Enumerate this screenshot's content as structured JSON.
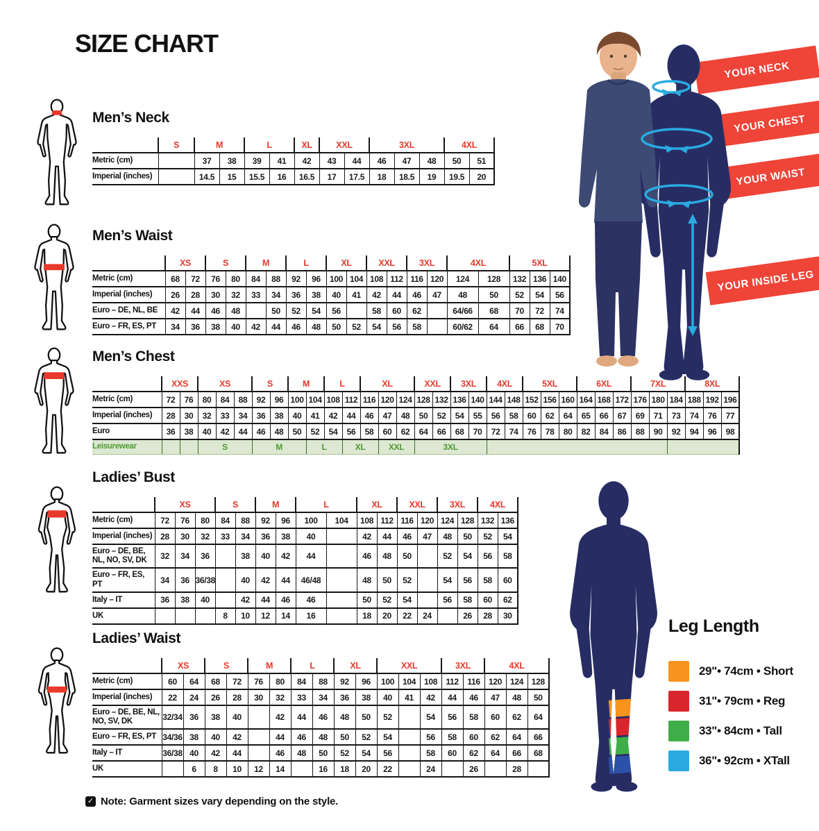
{
  "page": {
    "title": "SIZE CHART",
    "note": "Note: Garment sizes vary depending on the style."
  },
  "colors": {
    "accent_red": "#e63a2c",
    "banner_red": "#ef4438",
    "navy": "#272d63",
    "cyan": "#29abe2",
    "leisure_bg": "#dce8d2",
    "leisure_text": "#4f9a31"
  },
  "banners": {
    "neck": "YOUR NECK",
    "chest": "YOUR CHEST",
    "waist": "YOUR WAIST",
    "inside_leg": "YOUR INSIDE LEG"
  },
  "leg_length": {
    "title": "Leg Length",
    "items": [
      {
        "color": "#f7941e",
        "label": "29\"• 74cm • Short"
      },
      {
        "color": "#d8262c",
        "label": "31\"• 79cm • Reg"
      },
      {
        "color": "#3fae49",
        "label": "33\"• 84cm • Tall"
      },
      {
        "color": "#29abe2",
        "label": "36\"• 92cm • XTall"
      }
    ]
  },
  "tables": {
    "mens_neck": {
      "title": "Men’s Neck",
      "groups": [
        {
          "label": "S",
          "span": 1
        },
        {
          "label": "M",
          "span": 2
        },
        {
          "label": "L",
          "span": 2
        },
        {
          "label": "XL",
          "span": 1
        },
        {
          "label": "XXL",
          "span": 2
        },
        {
          "label": "3XL",
          "span": 3
        },
        {
          "label": "4XL",
          "span": 2
        }
      ],
      "rows": [
        {
          "label": "Metric (cm)",
          "cells": [
            "",
            "37",
            "38",
            "39",
            "41",
            "42",
            "43",
            "44",
            "46",
            "47",
            "48",
            "50",
            "51"
          ]
        },
        {
          "label": "Imperial (inches)",
          "cells": [
            "",
            "14.5",
            "15",
            "15.5",
            "16",
            "16.5",
            "17",
            "17.5",
            "18",
            "18.5",
            "19",
            "19.5",
            "20"
          ]
        }
      ]
    },
    "mens_waist": {
      "title": "Men’s Waist",
      "groups": [
        {
          "label": "XS",
          "span": 2
        },
        {
          "label": "S",
          "span": 2
        },
        {
          "label": "M",
          "span": 2
        },
        {
          "label": "L",
          "span": 2
        },
        {
          "label": "XL",
          "span": 2
        },
        {
          "label": "XXL",
          "span": 2
        },
        {
          "label": "3XL",
          "span": 2
        },
        {
          "label": "4XL",
          "span": 2
        },
        {
          "label": "5XL",
          "span": 3
        }
      ],
      "rows": [
        {
          "label": "Metric (cm)",
          "cells": [
            "68",
            "72",
            "76",
            "80",
            "84",
            "88",
            "92",
            "96",
            "100",
            "104",
            "108",
            "112",
            "116",
            "120",
            "124",
            "128",
            "132",
            "136",
            "140"
          ]
        },
        {
          "label": "Imperial (inches)",
          "cells": [
            "26",
            "28",
            "30",
            "32",
            "33",
            "34",
            "36",
            "38",
            "40",
            "41",
            "42",
            "44",
            "46",
            "47",
            "48",
            "50",
            "52",
            "54",
            "56"
          ]
        },
        {
          "label": "Euro – DE, NL, BE",
          "cells": [
            "42",
            "44",
            "46",
            "48",
            "",
            "50",
            "52",
            "54",
            "56",
            "",
            "58",
            "60",
            "62",
            "",
            "64/66",
            "68",
            "70",
            "72",
            "74"
          ]
        },
        {
          "label": "Euro – FR, ES, PT",
          "cells": [
            "34",
            "36",
            "38",
            "40",
            "42",
            "44",
            "46",
            "48",
            "50",
            "52",
            "54",
            "56",
            "58",
            "",
            "60/62",
            "64",
            "66",
            "68",
            "70"
          ]
        }
      ]
    },
    "mens_chest": {
      "title": "Men’s Chest",
      "groups": [
        {
          "label": "XXS",
          "span": 2
        },
        {
          "label": "XS",
          "span": 3
        },
        {
          "label": "S",
          "span": 2
        },
        {
          "label": "M",
          "span": 2
        },
        {
          "label": "L",
          "span": 2
        },
        {
          "label": "XL",
          "span": 3
        },
        {
          "label": "XXL",
          "span": 2
        },
        {
          "label": "3XL",
          "span": 2
        },
        {
          "label": "4XL",
          "span": 2
        },
        {
          "label": "5XL",
          "span": 3
        },
        {
          "label": "6XL",
          "span": 3
        },
        {
          "label": "7XL",
          "span": 3
        },
        {
          "label": "8XL",
          "span": 3
        }
      ],
      "rows": [
        {
          "label": "Metric (cm)",
          "cells": [
            "72",
            "76",
            "80",
            "84",
            "88",
            "92",
            "96",
            "100",
            "104",
            "108",
            "112",
            "116",
            "120",
            "124",
            "128",
            "132",
            "136",
            "140",
            "144",
            "148",
            "152",
            "156",
            "160",
            "164",
            "168",
            "172",
            "176",
            "180",
            "184",
            "188",
            "192",
            "196"
          ]
        },
        {
          "label": "Imperial (inches)",
          "cells": [
            "28",
            "30",
            "32",
            "33",
            "34",
            "36",
            "38",
            "40",
            "41",
            "42",
            "44",
            "46",
            "47",
            "48",
            "50",
            "52",
            "54",
            "55",
            "56",
            "58",
            "60",
            "62",
            "64",
            "65",
            "66",
            "67",
            "69",
            "71",
            "73",
            "74",
            "76",
            "77"
          ]
        },
        {
          "label": "Euro",
          "cells": [
            "36",
            "38",
            "40",
            "42",
            "44",
            "46",
            "48",
            "50",
            "52",
            "54",
            "56",
            "58",
            "60",
            "62",
            "64",
            "66",
            "68",
            "70",
            "72",
            "74",
            "76",
            "78",
            "80",
            "82",
            "84",
            "86",
            "88",
            "90",
            "92",
            "94",
            "96",
            "98"
          ]
        }
      ],
      "leisure": {
        "label": "Leisurewear",
        "cells": [
          {
            "label": "",
            "span": 1
          },
          {
            "label": "",
            "span": 1
          },
          {
            "label": "S",
            "span": 3
          },
          {
            "label": "M",
            "span": 3
          },
          {
            "label": "L",
            "span": 2
          },
          {
            "label": "XL",
            "span": 2
          },
          {
            "label": "XXL",
            "span": 2
          },
          {
            "label": "3XL",
            "span": 4
          },
          {
            "label": "",
            "span": 10
          },
          {
            "label": "",
            "span": 4
          }
        ]
      }
    },
    "ladies_bust": {
      "title": "Ladies’ Bust",
      "groups": [
        {
          "label": "XS",
          "span": 3
        },
        {
          "label": "S",
          "span": 2
        },
        {
          "label": "M",
          "span": 2
        },
        {
          "label": "L",
          "span": 2
        },
        {
          "label": "XL",
          "span": 2
        },
        {
          "label": "XXL",
          "span": 2
        },
        {
          "label": "3XL",
          "span": 2
        },
        {
          "label": "4XL",
          "span": 2
        }
      ],
      "rows": [
        {
          "label": "Metric (cm)",
          "cells": [
            "72",
            "76",
            "80",
            "84",
            "88",
            "92",
            "96",
            "100",
            "104",
            "108",
            "112",
            "116",
            "120",
            "124",
            "128",
            "132",
            "136"
          ]
        },
        {
          "label": "Imperial (inches)",
          "cells": [
            "28",
            "30",
            "32",
            "33",
            "34",
            "36",
            "38",
            "40",
            "",
            "42",
            "44",
            "46",
            "47",
            "48",
            "50",
            "52",
            "54"
          ]
        },
        {
          "label": "Euro –  DE, BE,\nNL, NO, SV, DK",
          "cells": [
            "32",
            "34",
            "36",
            "",
            "38",
            "40",
            "42",
            "44",
            "",
            "46",
            "48",
            "50",
            "",
            "52",
            "54",
            "56",
            "58"
          ]
        },
        {
          "label": "Euro – FR, ES, PT",
          "cells": [
            "34",
            "36",
            "36/38",
            "",
            "40",
            "42",
            "44",
            "46/48",
            "",
            "48",
            "50",
            "52",
            "",
            "54",
            "56",
            "58",
            "60"
          ]
        },
        {
          "label": "Italy – IT",
          "cells": [
            "36",
            "38",
            "40",
            "",
            "42",
            "44",
            "46",
            "46",
            "",
            "50",
            "52",
            "54",
            "",
            "56",
            "58",
            "60",
            "62"
          ]
        },
        {
          "label": "UK",
          "cells": [
            "",
            "",
            "",
            "8",
            "10",
            "12",
            "14",
            "16",
            "",
            "18",
            "20",
            "22",
            "24",
            "",
            "26",
            "28",
            "30"
          ]
        }
      ]
    },
    "ladies_waist": {
      "title": "Ladies’ Waist",
      "groups": [
        {
          "label": "XS",
          "span": 2
        },
        {
          "label": "S",
          "span": 2
        },
        {
          "label": "M",
          "span": 2
        },
        {
          "label": "L",
          "span": 2
        },
        {
          "label": "XL",
          "span": 2
        },
        {
          "label": "XXL",
          "span": 3
        },
        {
          "label": "3XL",
          "span": 2
        },
        {
          "label": "4XL",
          "span": 3
        }
      ],
      "rows": [
        {
          "label": "Metric (cm)",
          "cells": [
            "60",
            "64",
            "68",
            "72",
            "76",
            "80",
            "84",
            "88",
            "92",
            "96",
            "100",
            "104",
            "108",
            "112",
            "116",
            "120",
            "124",
            "128"
          ]
        },
        {
          "label": "Imperial (inches)",
          "cells": [
            "22",
            "24",
            "26",
            "28",
            "30",
            "32",
            "33",
            "34",
            "36",
            "38",
            "40",
            "41",
            "42",
            "44",
            "46",
            "47",
            "48",
            "50"
          ]
        },
        {
          "label": "Euro – DE, BE, NL,\nNO, SV, DK",
          "cells": [
            "32/34",
            "36",
            "38",
            "40",
            "",
            "42",
            "44",
            "46",
            "48",
            "50",
            "52",
            "",
            "54",
            "56",
            "58",
            "60",
            "62",
            "64"
          ]
        },
        {
          "label": "Euro – FR, ES, PT",
          "cells": [
            "34/36",
            "38",
            "40",
            "42",
            "",
            "44",
            "46",
            "48",
            "50",
            "52",
            "54",
            "",
            "56",
            "58",
            "60",
            "62",
            "64",
            "66"
          ]
        },
        {
          "label": "Italy – IT",
          "cells": [
            "36/38",
            "40",
            "42",
            "44",
            "",
            "46",
            "48",
            "50",
            "52",
            "54",
            "56",
            "",
            "58",
            "60",
            "62",
            "64",
            "66",
            "68"
          ]
        },
        {
          "label": "UK",
          "cells": [
            "",
            "6",
            "8",
            "10",
            "12",
            "14",
            "",
            "16",
            "18",
            "20",
            "22",
            "",
            "24",
            "",
            "26",
            "",
            "28",
            ""
          ]
        }
      ]
    }
  }
}
